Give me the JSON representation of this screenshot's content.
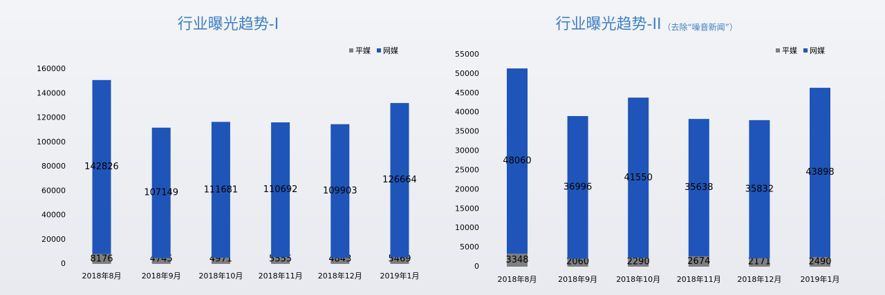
{
  "chart_data": [
    {
      "type": "bar",
      "stacked": true,
      "title": "行业曝光趋势-I",
      "categories": [
        "2018年8月",
        "2018年9月",
        "2018年10月",
        "2018年11月",
        "2018年12月",
        "2019年1月"
      ],
      "series": [
        {
          "name": "平媒",
          "color": "#7f7f7f",
          "values": [
            8176,
            4745,
            4971,
            5555,
            4843,
            5469
          ]
        },
        {
          "name": "网媒",
          "color": "#1f55b8",
          "values": [
            142826,
            107149,
            111681,
            110692,
            109903,
            126664
          ]
        }
      ],
      "ylim": [
        0,
        160000
      ],
      "yticks": [
        0,
        20000,
        40000,
        60000,
        80000,
        100000,
        120000,
        140000,
        160000
      ],
      "grid": false,
      "legend": "top-right"
    },
    {
      "type": "bar",
      "stacked": true,
      "title": "行业曝光趋势-II",
      "subtitle": "（去除“噪音新闻”）",
      "categories": [
        "2018年8月",
        "2018年9月",
        "2018年10月",
        "2018年11月",
        "2018年12月",
        "2019年1月"
      ],
      "series": [
        {
          "name": "平媒",
          "color": "#7f7f7f",
          "values": [
            3348,
            2060,
            2290,
            2674,
            2171,
            2490
          ]
        },
        {
          "name": "网媒",
          "color": "#1f55b8",
          "values": [
            48060,
            36996,
            41550,
            35638,
            35832,
            43898
          ]
        }
      ],
      "ylim": [
        0,
        55000
      ],
      "yticks": [
        0,
        5000,
        10000,
        15000,
        20000,
        25000,
        30000,
        35000,
        40000,
        45000,
        50000,
        55000
      ],
      "grid": false,
      "legend": "top-right"
    }
  ]
}
